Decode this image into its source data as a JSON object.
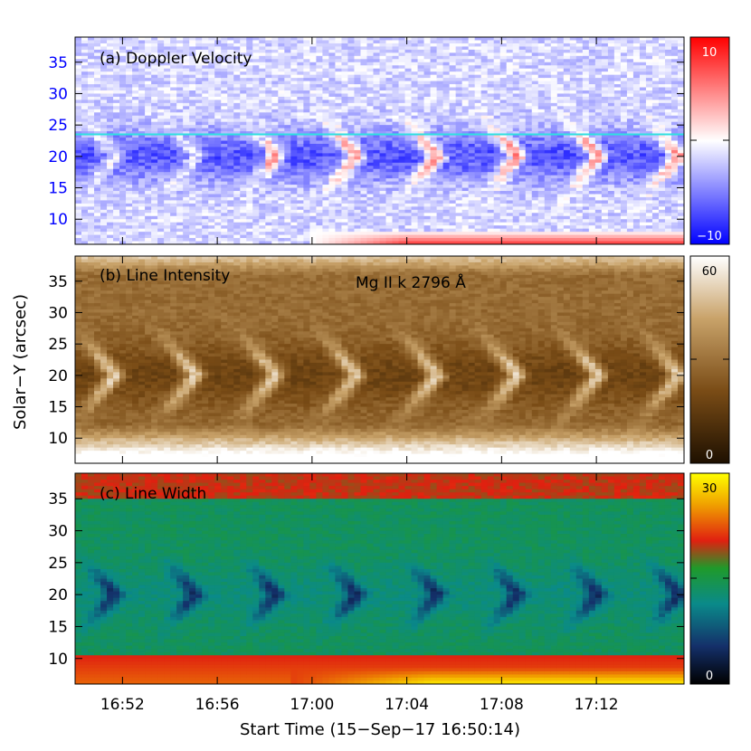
{
  "chart_data": [
    {
      "type": "heatmap",
      "title": "(a) Doppler Velocity",
      "ylim": [
        6,
        39
      ],
      "yticks": [
        10,
        15,
        20,
        25,
        30,
        35
      ],
      "colorbar": {
        "min": -10,
        "max": 10,
        "min_label": "−10",
        "max_label": "10",
        "colors": [
          "#0000ff",
          "#ffffff",
          "#ff0000"
        ],
        "tick_labels_color": "#ffffff"
      },
      "y_tick_color": "#0000ff",
      "cut_line_y": 23.5,
      "cut_line_color": "#2fe0e0"
    },
    {
      "type": "heatmap",
      "title": "(b) Line Intensity",
      "annotation": "Mg II k 2796 Å",
      "ylim": [
        6,
        39
      ],
      "yticks": [
        10,
        15,
        20,
        25,
        30,
        35
      ],
      "colorbar": {
        "min": 0,
        "max": 60,
        "min_label": "0",
        "max_label": "60",
        "colors": [
          "#2a1800",
          "#8c5a1e",
          "#c9a36a",
          "#ffffff"
        ]
      }
    },
    {
      "type": "heatmap",
      "title": "(c) Line Width",
      "ylim": [
        6,
        39
      ],
      "yticks": [
        10,
        15,
        20,
        25,
        30,
        35
      ],
      "colorbar": {
        "min": 0,
        "max": 30,
        "min_label": "0",
        "max_label": "30",
        "colors": [
          "#000000",
          "#1a4a8a",
          "#0a9a7a",
          "#22a02a",
          "#e03010",
          "#ffff00"
        ]
      }
    }
  ],
  "x_axis": {
    "ticks": [
      "16:52",
      "16:56",
      "17:00",
      "17:04",
      "17:08",
      "17:12"
    ],
    "tick_minutes": [
      2,
      6,
      10,
      14,
      18,
      22
    ],
    "xlim_minutes": [
      0,
      25.7
    ],
    "label": "Start Time (15−Sep−17 16:50:14)"
  },
  "y_axis": {
    "label": "Solar−Y (arcsec)"
  },
  "colors": {
    "blue": "#0000ff",
    "red": "#ff0000",
    "cyan": "#2fe0e0"
  }
}
